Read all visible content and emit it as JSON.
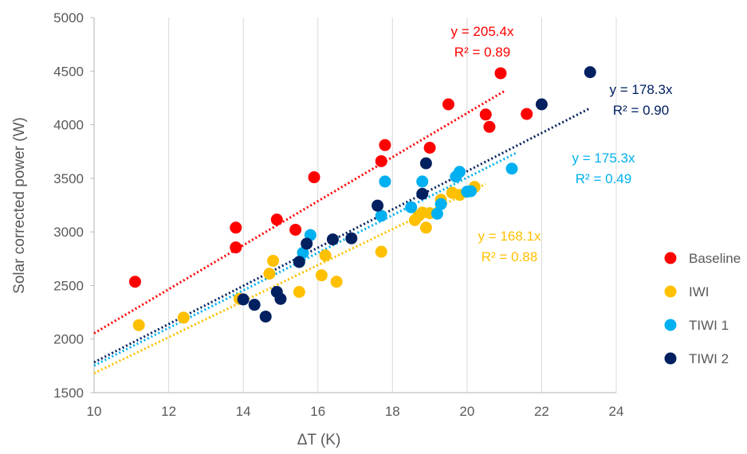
{
  "chart_data": {
    "type": "scatter",
    "xlabel": "ΔT (K)",
    "ylabel": "Solar corrected  power (W)",
    "xlim": [
      10,
      24
    ],
    "ylim": [
      1500,
      5000
    ],
    "xticks": [
      "10",
      "12",
      "14",
      "16",
      "18",
      "20",
      "22",
      "24"
    ],
    "yticks": [
      "1500",
      "2000",
      "2500",
      "3000",
      "3500",
      "4000",
      "4500",
      "5000"
    ],
    "grid": "vertical",
    "legend_position": "right",
    "series": [
      {
        "name": "Baseline",
        "color": "#ff0000",
        "trend_slope": 205.4,
        "trend_x_range": [
          10,
          21
        ],
        "equation": "y = 205.4x",
        "r2": "R² = 0.89",
        "points": [
          [
            11.1,
            2535
          ],
          [
            13.8,
            3040
          ],
          [
            13.8,
            2855
          ],
          [
            14.9,
            3115
          ],
          [
            15.4,
            3020
          ],
          [
            15.9,
            3510
          ],
          [
            17.7,
            3660
          ],
          [
            17.8,
            3810
          ],
          [
            19.0,
            3785
          ],
          [
            19.5,
            4190
          ],
          [
            20.5,
            4095
          ],
          [
            20.6,
            3980
          ],
          [
            20.9,
            4480
          ],
          [
            21.6,
            4100
          ]
        ]
      },
      {
        "name": "IWI",
        "color": "#ffc000",
        "trend_slope": 168.1,
        "trend_x_range": [
          10,
          20.5
        ],
        "equation": "y = 168.1x",
        "r2": "R² = 0.88",
        "points": [
          [
            11.2,
            2130
          ],
          [
            12.4,
            2200
          ],
          [
            13.9,
            2375
          ],
          [
            14.7,
            2610
          ],
          [
            14.8,
            2730
          ],
          [
            15.5,
            2440
          ],
          [
            16.1,
            2595
          ],
          [
            16.2,
            2780
          ],
          [
            16.5,
            2535
          ],
          [
            17.7,
            2815
          ],
          [
            18.6,
            3110
          ],
          [
            18.7,
            3150
          ],
          [
            18.8,
            3180
          ],
          [
            18.9,
            3040
          ],
          [
            19.0,
            3175
          ],
          [
            19.3,
            3300
          ],
          [
            19.6,
            3365
          ],
          [
            19.8,
            3345
          ],
          [
            20.2,
            3420
          ]
        ]
      },
      {
        "name": "TIWI 1",
        "color": "#00b0f0",
        "trend_slope": 175.3,
        "trend_x_range": [
          10,
          21.3
        ],
        "equation": "y = 175.3x",
        "r2": "R² = 0.49",
        "points": [
          [
            15.5,
            2720
          ],
          [
            15.6,
            2805
          ],
          [
            15.8,
            2970
          ],
          [
            17.7,
            3150
          ],
          [
            17.8,
            3470
          ],
          [
            18.5,
            3230
          ],
          [
            18.8,
            3470
          ],
          [
            19.2,
            3170
          ],
          [
            19.3,
            3260
          ],
          [
            19.7,
            3515
          ],
          [
            19.8,
            3560
          ],
          [
            20.0,
            3375
          ],
          [
            20.1,
            3380
          ],
          [
            21.2,
            3590
          ]
        ]
      },
      {
        "name": "TIWI 2",
        "color": "#002060",
        "trend_slope": 178.3,
        "trend_x_range": [
          10,
          23.3
        ],
        "equation": "y = 178.3x",
        "r2": "R² = 0.90",
        "points": [
          [
            14.0,
            2370
          ],
          [
            14.3,
            2320
          ],
          [
            14.6,
            2210
          ],
          [
            14.9,
            2440
          ],
          [
            15.0,
            2375
          ],
          [
            15.5,
            2720
          ],
          [
            15.7,
            2890
          ],
          [
            16.4,
            2930
          ],
          [
            16.9,
            2940
          ],
          [
            17.6,
            3245
          ],
          [
            18.8,
            3355
          ],
          [
            18.9,
            3640
          ],
          [
            22.0,
            4190
          ],
          [
            23.3,
            4490
          ]
        ]
      }
    ]
  }
}
